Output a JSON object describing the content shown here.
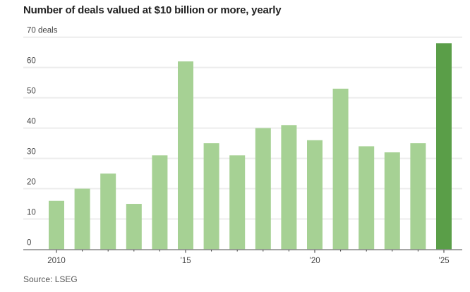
{
  "chart_data": {
    "type": "bar",
    "title": "Number of deals valued at $10 billion or more, yearly",
    "source": "Source: LSEG",
    "categories": [
      "2010",
      "2011",
      "2012",
      "2013",
      "2014",
      "2015",
      "2016",
      "2017",
      "2018",
      "2019",
      "2020",
      "2021",
      "2022",
      "2023",
      "2024",
      "2025"
    ],
    "values": [
      16,
      20,
      25,
      15,
      31,
      62,
      35,
      31,
      40,
      41,
      36,
      53,
      34,
      32,
      35,
      68
    ],
    "x_tick_labels": {
      "2010": "2010",
      "2015": "’15",
      "2020": "’20",
      "2025": "’25"
    },
    "y_ticks": [
      0,
      10,
      20,
      30,
      40,
      50,
      60,
      70
    ],
    "y_tick_labels": [
      "0",
      "10",
      "20",
      "30",
      "40",
      "50",
      "60",
      "70 deals"
    ],
    "ylim": [
      0,
      70
    ],
    "grid": true,
    "colors": {
      "bar": "#a6d194",
      "highlight": "#5a9e48",
      "grid": "#ececec",
      "axis": "#888888"
    },
    "highlight_category": "2025"
  }
}
